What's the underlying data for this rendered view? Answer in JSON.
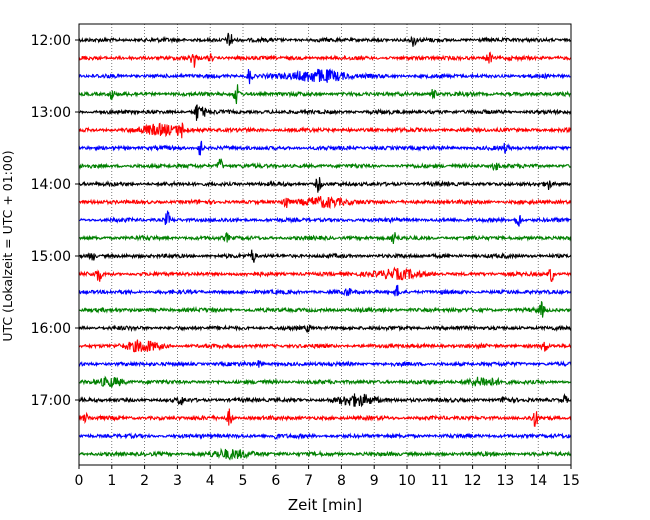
{
  "chart_data": {
    "type": "line",
    "subtype": "helicorder",
    "xlabel": "Zeit  [min]",
    "ylabel": "UTC (Lokalzeit = UTC + 01:00)",
    "xlim": [
      0,
      15
    ],
    "x_ticks": [
      "0",
      "1",
      "2",
      "3",
      "4",
      "5",
      "6",
      "7",
      "8",
      "9",
      "10",
      "11",
      "12",
      "13",
      "14",
      "15"
    ],
    "y_ticks": [
      "12:00",
      "13:00",
      "14:00",
      "15:00",
      "16:00",
      "17:00"
    ],
    "grid": "vertical dotted every minute",
    "minutes_per_trace": 15,
    "start_time_utc": "12:00",
    "colors": [
      "#000000",
      "#ff0000",
      "#0000ff",
      "#008000"
    ],
    "series": [
      {
        "start": "12:00",
        "color": "#000000",
        "events": [
          {
            "t": 4.6,
            "a": 9
          },
          {
            "t": 10.2,
            "a": 6
          }
        ]
      },
      {
        "start": "12:15",
        "color": "#ff0000",
        "events": [
          {
            "t": 3.5,
            "a": 9
          },
          {
            "t": 12.5,
            "a": 7
          },
          {
            "t": 4.0,
            "a": 4
          }
        ]
      },
      {
        "start": "12:30",
        "color": "#0000ff",
        "events": [
          {
            "t": 5.2,
            "a": 8
          },
          {
            "t": 7.3,
            "a": 6,
            "w": 0.8
          }
        ]
      },
      {
        "start": "12:45",
        "color": "#008000",
        "events": [
          {
            "t": 4.8,
            "a": 10
          },
          {
            "t": 1.0,
            "a": 5
          },
          {
            "t": 10.8,
            "a": 5
          }
        ]
      },
      {
        "start": "13:00",
        "color": "#000000",
        "events": [
          {
            "t": 3.6,
            "a": 9
          },
          {
            "t": 3.8,
            "a": 5
          }
        ]
      },
      {
        "start": "13:15",
        "color": "#ff0000",
        "events": [
          {
            "t": 3.1,
            "a": 8
          },
          {
            "t": 2.5,
            "a": 5,
            "w": 0.6
          }
        ]
      },
      {
        "start": "13:30",
        "color": "#0000ff",
        "events": [
          {
            "t": 3.7,
            "a": 8
          },
          {
            "t": 13.0,
            "a": 4
          }
        ]
      },
      {
        "start": "13:45",
        "color": "#008000",
        "events": [
          {
            "t": 4.3,
            "a": 8
          },
          {
            "t": 12.7,
            "a": 5
          }
        ]
      },
      {
        "start": "14:00",
        "color": "#000000",
        "events": [
          {
            "t": 7.3,
            "a": 8
          },
          {
            "t": 14.3,
            "a": 5
          }
        ]
      },
      {
        "start": "14:15",
        "color": "#ff0000",
        "events": [
          {
            "t": 6.3,
            "a": 8
          },
          {
            "t": 7.5,
            "a": 5,
            "w": 0.6
          }
        ]
      },
      {
        "start": "14:30",
        "color": "#0000ff",
        "events": [
          {
            "t": 2.7,
            "a": 8
          },
          {
            "t": 13.4,
            "a": 8
          }
        ]
      },
      {
        "start": "14:45",
        "color": "#008000",
        "events": [
          {
            "t": 9.6,
            "a": 7
          },
          {
            "t": 4.5,
            "a": 4
          }
        ]
      },
      {
        "start": "15:00",
        "color": "#000000",
        "events": [
          {
            "t": 0.4,
            "a": 5
          },
          {
            "t": 5.3,
            "a": 7
          }
        ]
      },
      {
        "start": "15:15",
        "color": "#ff0000",
        "events": [
          {
            "t": 0.6,
            "a": 7
          },
          {
            "t": 14.4,
            "a": 8
          },
          {
            "t": 9.7,
            "a": 5,
            "w": 0.6
          }
        ]
      },
      {
        "start": "15:30",
        "color": "#0000ff",
        "events": [
          {
            "t": 9.7,
            "a": 6
          },
          {
            "t": 8.2,
            "a": 4
          }
        ]
      },
      {
        "start": "15:45",
        "color": "#008000",
        "events": [
          {
            "t": 14.1,
            "a": 7
          }
        ]
      },
      {
        "start": "16:00",
        "color": "#000000",
        "events": [
          {
            "t": 7.0,
            "a": 3
          }
        ]
      },
      {
        "start": "16:15",
        "color": "#ff0000",
        "events": [
          {
            "t": 1.9,
            "a": 5,
            "w": 0.5
          },
          {
            "t": 14.2,
            "a": 6
          }
        ]
      },
      {
        "start": "16:30",
        "color": "#0000ff",
        "events": [
          {
            "t": 5.5,
            "a": 3
          }
        ]
      },
      {
        "start": "16:45",
        "color": "#008000",
        "events": [
          {
            "t": 1.0,
            "a": 4,
            "w": 0.4
          },
          {
            "t": 12.3,
            "a": 4,
            "w": 0.5
          }
        ]
      },
      {
        "start": "17:00",
        "color": "#000000",
        "events": [
          {
            "t": 3.1,
            "a": 4
          },
          {
            "t": 8.5,
            "a": 5,
            "w": 0.6
          },
          {
            "t": 13.0,
            "a": 5
          },
          {
            "t": 14.8,
            "a": 4
          }
        ]
      },
      {
        "start": "17:15",
        "color": "#ff0000",
        "events": [
          {
            "t": 4.6,
            "a": 9
          },
          {
            "t": 13.9,
            "a": 8
          },
          {
            "t": 0.2,
            "a": 4
          }
        ]
      },
      {
        "start": "17:30",
        "color": "#0000ff",
        "events": [
          {
            "t": 6.0,
            "a": 3
          }
        ]
      },
      {
        "start": "17:45",
        "color": "#008000",
        "events": [
          {
            "t": 4.7,
            "a": 4,
            "w": 0.6
          }
        ]
      }
    ]
  }
}
